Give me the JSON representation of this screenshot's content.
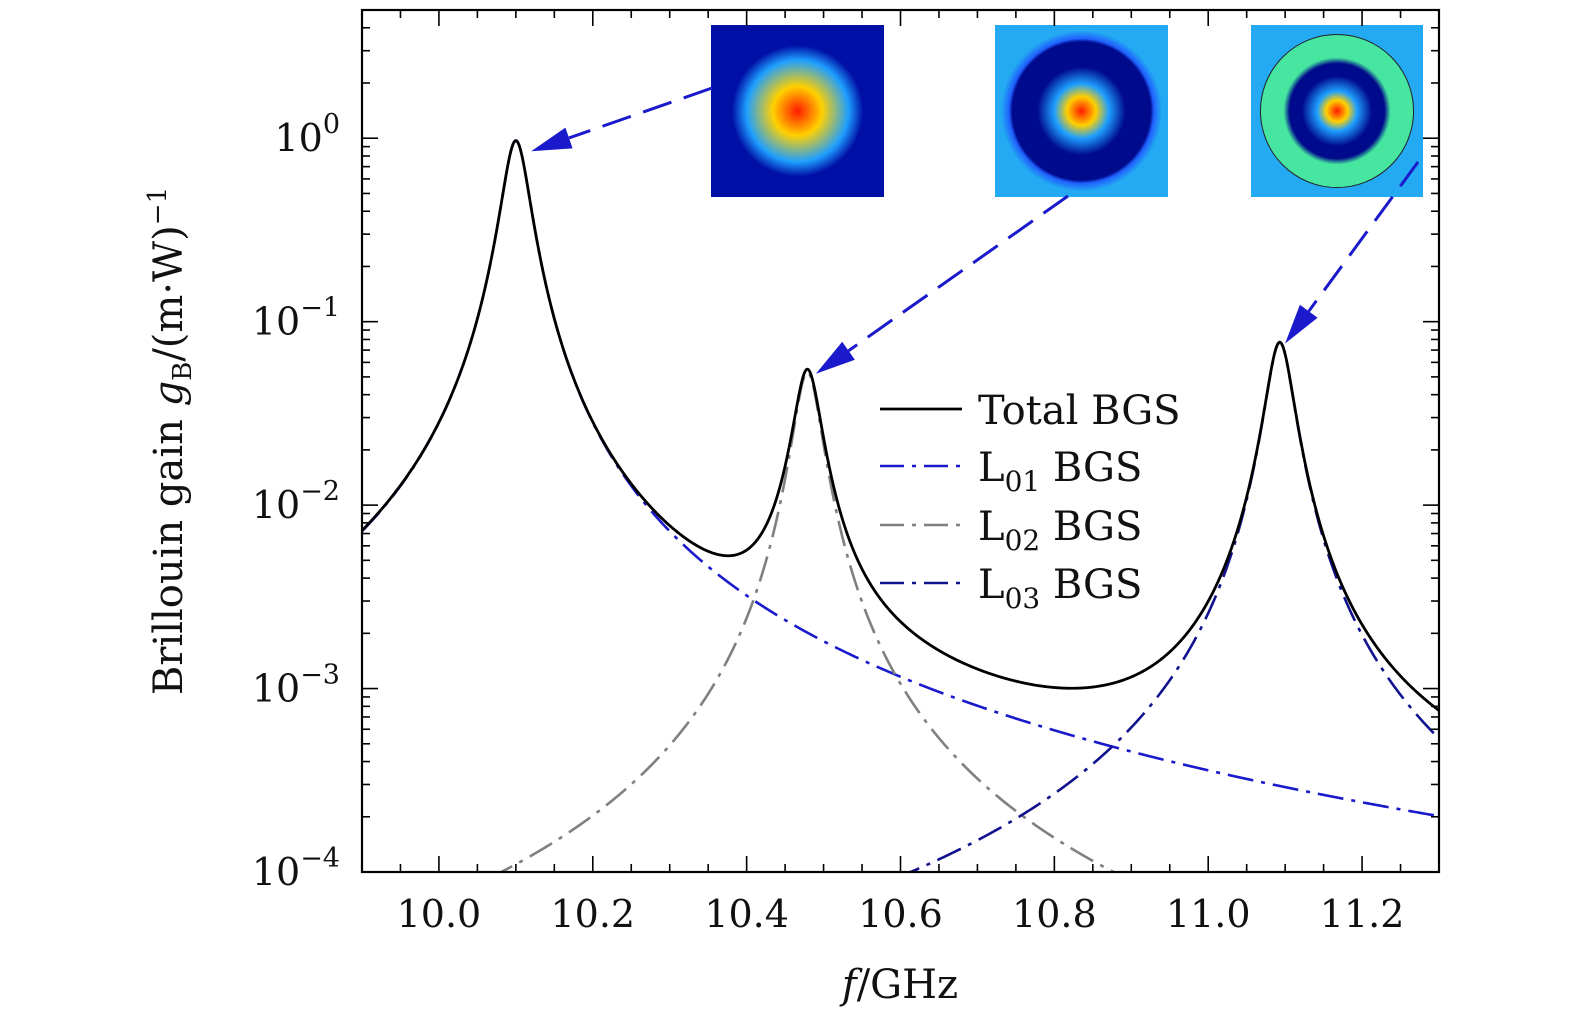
{
  "chart_data": {
    "type": "line",
    "title": "",
    "xlabel": "f/GHz",
    "ylabel": "Brillouin gain g_B/(m·W)^-1",
    "ylabel_parts": {
      "main": "Brillouin gain ",
      "symbol": "g",
      "subscript": "B",
      "unit": "/(m·W)",
      "superscript": "−1"
    },
    "xlim": [
      9.9,
      11.3
    ],
    "ylim": [
      0.0001,
      5
    ],
    "yscale": "log",
    "x_ticks": [
      10.0,
      10.2,
      10.4,
      10.6,
      10.8,
      11.0,
      11.2
    ],
    "x_tick_labels": [
      "10.0",
      "10.2",
      "10.4",
      "10.6",
      "10.8",
      "11.0",
      "11.2"
    ],
    "y_ticks": [
      {
        "value": 1,
        "base": "10",
        "exp": "0"
      },
      {
        "value": 0.1,
        "base": "10",
        "exp": "−1"
      },
      {
        "value": 0.01,
        "base": "10",
        "exp": "−2"
      },
      {
        "value": 0.001,
        "base": "10",
        "exp": "−3"
      },
      {
        "value": 0.0001,
        "base": "10",
        "exp": "−4"
      }
    ],
    "legend_position": "center-right",
    "series": [
      {
        "name": "Total BGS",
        "label_main": "Total BGS",
        "label_sub": "",
        "label_tail": "",
        "color": "#000000",
        "dash": "solid",
        "is_total": true
      },
      {
        "name": "L01 BGS",
        "label_main": "L",
        "label_sub": "01",
        "label_tail": " BGS",
        "color": "#1a1acc",
        "dash": "dashdot",
        "peak_f": 10.1,
        "peak_g": 0.97,
        "width_ghz": 0.0346
      },
      {
        "name": "L02 BGS",
        "label_main": "L",
        "label_sub": "02",
        "label_tail": " BGS",
        "color": "#808080",
        "dash": "dashdot",
        "peak_f": 10.479,
        "peak_g": 0.053,
        "width_ghz": 0.0346
      },
      {
        "name": "L03 BGS",
        "label_main": "L",
        "label_sub": "03",
        "label_tail": " BGS",
        "color": "#12128f",
        "dash": "dashdot",
        "peak_f": 11.093,
        "peak_g": 0.077,
        "width_ghz": 0.0346
      }
    ],
    "insets": [
      {
        "name": "L01 mode field",
        "colors": [
          "#ff1a00",
          "#ffd000",
          "#1e9fff",
          "#000fa6",
          "#000fa6"
        ],
        "target_f": 10.12,
        "target_g": 0.85
      },
      {
        "name": "L02 mode field",
        "colors": [
          "#ff1a00",
          "#ffd000",
          "#1e9fff",
          "#000a8c",
          "#2060ff",
          "#23aaf2"
        ],
        "target_f": 10.49,
        "target_g": 0.052
      },
      {
        "name": "L03 mode field",
        "colors": [
          "#ff1a00",
          "#ffd000",
          "#1e9fff",
          "#000a8c",
          "#46e6a0",
          "#23aaf2"
        ],
        "target_f": 11.1,
        "target_g": 0.076
      }
    ],
    "arrow_color": "#1a1acc"
  }
}
